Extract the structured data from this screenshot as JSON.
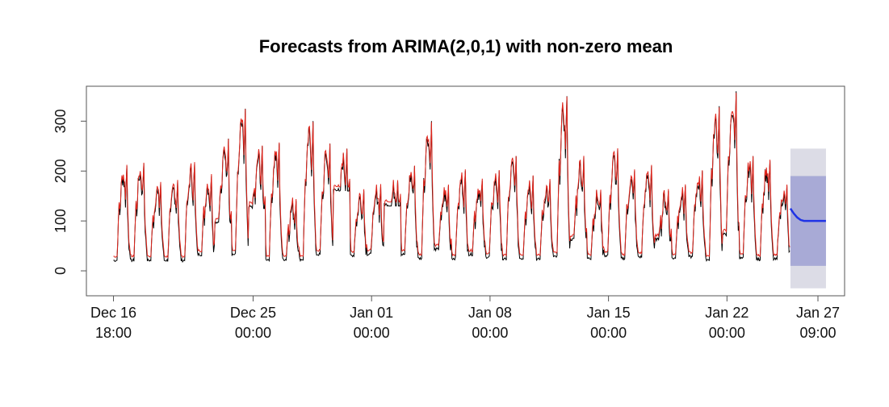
{
  "chart_data": {
    "type": "line",
    "title": "Forecasts from ARIMA(2,0,1) with non-zero mean",
    "xlabel": "",
    "ylabel": "",
    "ylim": [
      -50,
      370
    ],
    "y_ticks": [
      0,
      100,
      200,
      300
    ],
    "x_ticks": [
      {
        "line1": "Dec 16",
        "line2": "18:00"
      },
      {
        "line1": "Dec 25",
        "line2": "00:00"
      },
      {
        "line1": "Jan 01",
        "line2": "00:00"
      },
      {
        "line1": "Jan 08",
        "line2": "00:00"
      },
      {
        "line1": "Jan 15",
        "line2": "00:00"
      },
      {
        "line1": "Jan 22",
        "line2": "00:00"
      },
      {
        "line1": "Jan 27",
        "line2": "09:00"
      }
    ],
    "x_tick_days": [
      0.0,
      8.25,
      15.25,
      22.25,
      29.25,
      36.25,
      41.625
    ],
    "xlim_days": [
      -1.6,
      43.2
    ],
    "history_end_day": 40.0,
    "daily_peaks": [
      210,
      215,
      175,
      180,
      215,
      190,
      265,
      325,
      250,
      255,
      140,
      300,
      255,
      245,
      160,
      170,
      180,
      210,
      300,
      170,
      200,
      180,
      200,
      230,
      190,
      180,
      350,
      230,
      160,
      245,
      200,
      210,
      160,
      170,
      200,
      330,
      360,
      230,
      220,
      170
    ],
    "daily_troughs": [
      18,
      18,
      18,
      18,
      18,
      30,
      95,
      30,
      125,
      20,
      20,
      20,
      30,
      160,
      28,
      30,
      130,
      30,
      22,
      40,
      22,
      30,
      25,
      20,
      22,
      20,
      25,
      60,
      22,
      28,
      22,
      25,
      60,
      22,
      25,
      20,
      70,
      22,
      20,
      20
    ],
    "series": [
      {
        "name": "",
        "color": "#000000",
        "role": "observed"
      },
      {
        "name": "",
        "color": "#e0241b",
        "role": "fitted"
      },
      {
        "name": "",
        "color": "#1f33e6",
        "role": "forecast",
        "x_days": [
          40.0,
          40.2,
          40.4,
          40.6,
          40.8,
          41.0,
          41.2,
          41.5,
          41.8,
          42.1
        ],
        "values": [
          125,
          115,
          107,
          102,
          100,
          100,
          100,
          100,
          100,
          100
        ]
      }
    ],
    "intervals": [
      {
        "level": 95,
        "color": "#dcdce6",
        "lower": -35,
        "upper": 245
      },
      {
        "level": 80,
        "color": "#a8aad6",
        "lower": 10,
        "upper": 190
      }
    ],
    "grid": false,
    "legend": "none"
  }
}
